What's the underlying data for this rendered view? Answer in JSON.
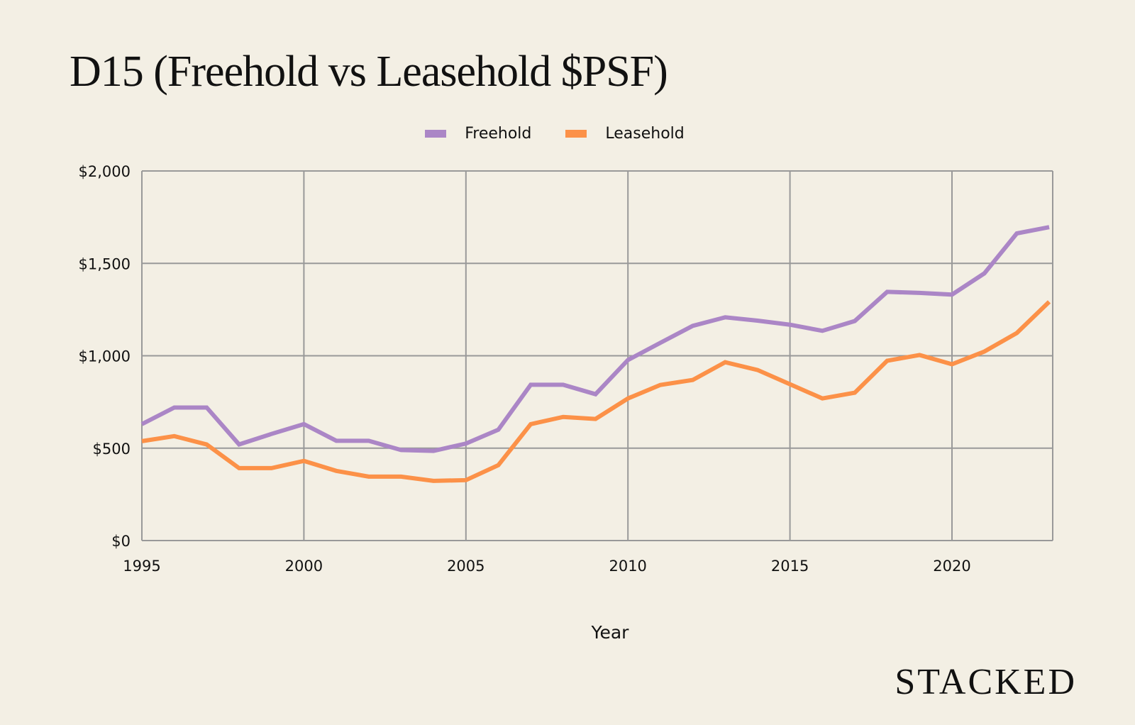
{
  "brand": {
    "logo_text": "STACKED"
  },
  "colors": {
    "background": "#f3efe4",
    "freehold": "#ab86c6",
    "leasehold": "#fc9148",
    "grid": "#999999"
  },
  "chart_data": {
    "type": "line",
    "title": "D15 (Freehold vs Leasehold $PSF)",
    "xlabel": "Year",
    "ylabel": "",
    "legend_position": "top-center",
    "grid": true,
    "x": [
      1995,
      1996,
      1997,
      1998,
      1999,
      2000,
      2001,
      2002,
      2003,
      2004,
      2005,
      2006,
      2007,
      2008,
      2009,
      2010,
      2011,
      2012,
      2013,
      2014,
      2015,
      2016,
      2017,
      2018,
      2019,
      2020,
      2021,
      2022,
      2023
    ],
    "xlim": [
      1995,
      2023.6
    ],
    "ylim": [
      0,
      2000
    ],
    "x_ticks": [
      1995,
      2000,
      2005,
      2010,
      2015,
      2020
    ],
    "x_tick_labels": [
      "1995",
      "2000",
      "2005",
      "2010",
      "2015",
      "2020"
    ],
    "y_ticks": [
      0,
      500,
      1000,
      1500,
      2000
    ],
    "y_tick_labels": [
      "$0",
      "$500",
      "$1,000",
      "$1,500",
      "$2,000"
    ],
    "series": [
      {
        "name": "Freehold",
        "color": "#ab86c6",
        "values": [
          630,
          720,
          720,
          520,
          577,
          630,
          540,
          540,
          490,
          485,
          525,
          600,
          843,
          843,
          792,
          977,
          1070,
          1162,
          1208,
          1190,
          1168,
          1135,
          1188,
          1346,
          1340,
          1331,
          1446,
          1662,
          1696
        ]
      },
      {
        "name": "Leasehold",
        "color": "#fc9148",
        "values": [
          538,
          565,
          520,
          392,
          392,
          431,
          377,
          346,
          346,
          323,
          327,
          408,
          630,
          669,
          658,
          769,
          842,
          869,
          965,
          923,
          846,
          769,
          800,
          973,
          1004,
          954,
          1023,
          1123,
          1292
        ]
      }
    ]
  }
}
